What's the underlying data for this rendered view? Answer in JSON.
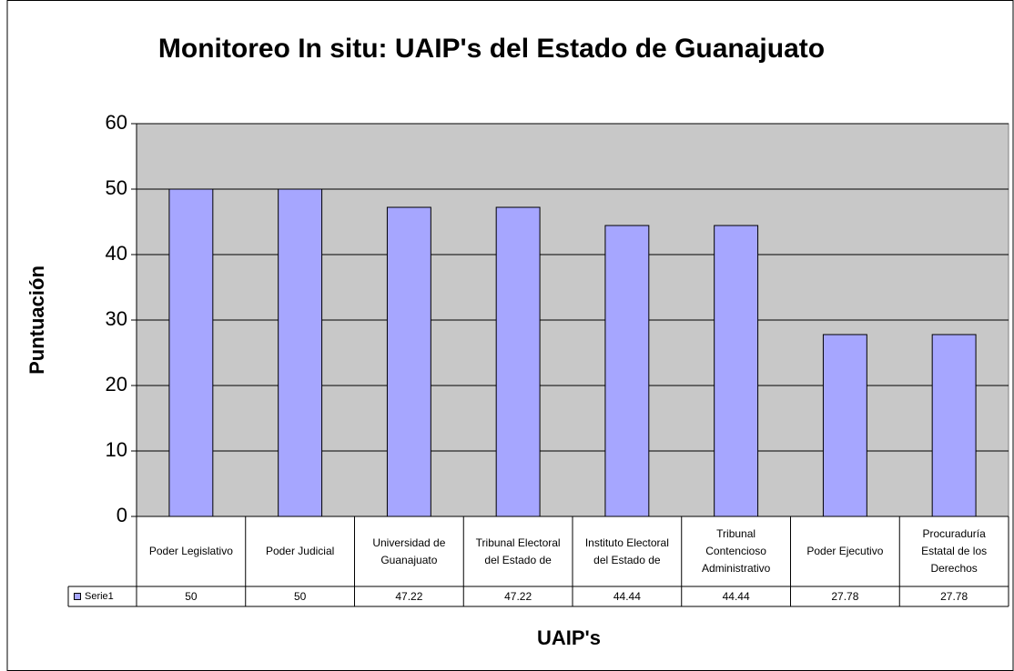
{
  "chart_data": {
    "type": "bar",
    "title": "Monitoreo In situ: UAIP's del Estado de Guanajuato",
    "y_label": "Puntuación",
    "x_label": "UAIP's",
    "categories": [
      "Poder Legislativo",
      "Poder Judicial",
      "Universidad de Guanajuato",
      "Tribunal Electoral del Estado de",
      "Instituto Electoral del Estado de",
      "Tribunal Contencioso Administrativo",
      "Poder Ejecutivo",
      "Procuraduría Estatal de los Derechos"
    ],
    "series": [
      {
        "name": "Serie1",
        "color": "#a6a6ff",
        "values": [
          50,
          50,
          47.22,
          47.22,
          44.44,
          44.44,
          27.78,
          27.78
        ]
      }
    ],
    "ylim": [
      0,
      60
    ],
    "yticks": [
      0,
      10,
      20,
      30,
      40,
      50,
      60
    ],
    "grid": true
  }
}
